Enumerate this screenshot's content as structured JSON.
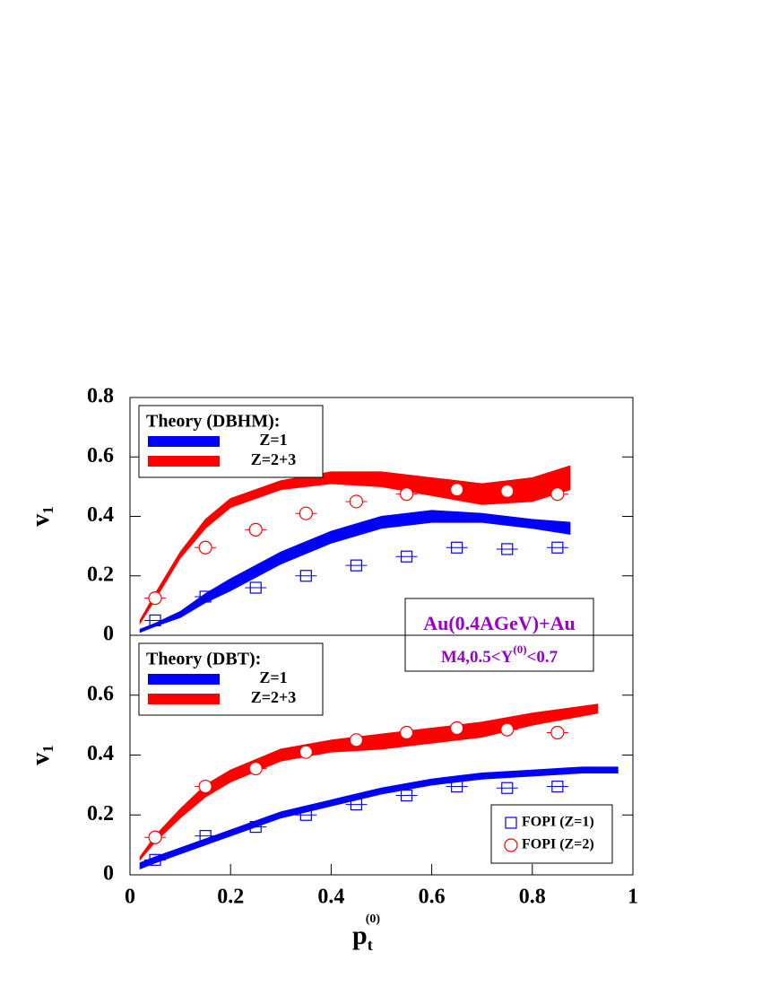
{
  "chart_data": [
    {
      "type": "band",
      "ylabel": {
        "text": "v",
        "sub": "1"
      },
      "xlim": [
        0,
        1
      ],
      "ylim": [
        0,
        0.8
      ],
      "yticks": [
        0,
        0.2,
        0.4,
        0.6,
        0.8
      ],
      "legend": "upper left",
      "legend_title": "Theory (DBHM):",
      "annotation": {
        "line1": "Au(0.4AGeV)+Au",
        "line2": [
          "M4,0.5<Y",
          "(0)",
          "<0.7"
        ],
        "color": "#9900cc"
      },
      "series": [
        {
          "name": "Z=1",
          "color": "#0000ff",
          "x": [
            0.02,
            0.05,
            0.1,
            0.15,
            0.2,
            0.3,
            0.4,
            0.5,
            0.6,
            0.7,
            0.8,
            0.875
          ],
          "low": [
            0.01,
            0.03,
            0.06,
            0.11,
            0.15,
            0.24,
            0.31,
            0.36,
            0.38,
            0.38,
            0.36,
            0.34
          ],
          "high": [
            0.02,
            0.04,
            0.08,
            0.14,
            0.19,
            0.28,
            0.35,
            0.4,
            0.42,
            0.41,
            0.39,
            0.38
          ]
        },
        {
          "name": "Z=2+3",
          "color": "#ff0000",
          "x": [
            0.02,
            0.05,
            0.1,
            0.15,
            0.2,
            0.3,
            0.4,
            0.5,
            0.6,
            0.7,
            0.8,
            0.875
          ],
          "low": [
            0.04,
            0.12,
            0.26,
            0.36,
            0.43,
            0.49,
            0.51,
            0.5,
            0.47,
            0.44,
            0.45,
            0.49
          ],
          "high": [
            0.05,
            0.14,
            0.28,
            0.39,
            0.46,
            0.52,
            0.55,
            0.55,
            0.53,
            0.51,
            0.53,
            0.57
          ]
        }
      ],
      "points": [
        {
          "marker": "square",
          "color": "#0000ff",
          "x": [
            0.05,
            0.15,
            0.25,
            0.35,
            0.45,
            0.55,
            0.65,
            0.75,
            0.85
          ],
          "values": [
            0.05,
            0.13,
            0.16,
            0.2,
            0.235,
            0.265,
            0.295,
            0.29,
            0.295
          ]
        },
        {
          "marker": "circle",
          "color": "#ff0000",
          "x": [
            0.05,
            0.15,
            0.25,
            0.35,
            0.45,
            0.55,
            0.65,
            0.75,
            0.85
          ],
          "values": [
            0.125,
            0.295,
            0.355,
            0.41,
            0.45,
            0.475,
            0.49,
            0.485,
            0.475
          ]
        }
      ]
    },
    {
      "type": "band",
      "ylabel": {
        "text": "v",
        "sub": "1"
      },
      "xlabel": {
        "text": "p",
        "sub": "t",
        "sup": "(0)"
      },
      "xlim": [
        0,
        1
      ],
      "ylim": [
        0,
        0.8
      ],
      "xticks": [
        0,
        0.2,
        0.4,
        0.6,
        0.8,
        1
      ],
      "yticks": [
        0,
        0.2,
        0.4,
        0.6
      ],
      "legend": "upper left",
      "legend_title": "Theory (DBT):",
      "marker_legend": "lower right",
      "series": [
        {
          "name": "Z=1",
          "color": "#0000ff",
          "x": [
            0.02,
            0.05,
            0.1,
            0.2,
            0.3,
            0.4,
            0.5,
            0.6,
            0.7,
            0.8,
            0.9,
            0.97
          ],
          "low": [
            0.02,
            0.04,
            0.07,
            0.13,
            0.19,
            0.23,
            0.27,
            0.3,
            0.32,
            0.33,
            0.34,
            0.34
          ],
          "high": [
            0.04,
            0.06,
            0.09,
            0.15,
            0.21,
            0.25,
            0.29,
            0.32,
            0.34,
            0.35,
            0.36,
            0.36
          ]
        },
        {
          "name": "Z=2+3",
          "color": "#ff0000",
          "x": [
            0.02,
            0.05,
            0.1,
            0.15,
            0.2,
            0.3,
            0.4,
            0.5,
            0.6,
            0.7,
            0.8,
            0.93
          ],
          "low": [
            0.05,
            0.11,
            0.19,
            0.26,
            0.31,
            0.38,
            0.41,
            0.42,
            0.44,
            0.46,
            0.5,
            0.54
          ],
          "high": [
            0.06,
            0.13,
            0.22,
            0.3,
            0.35,
            0.42,
            0.45,
            0.47,
            0.49,
            0.51,
            0.54,
            0.57
          ]
        }
      ],
      "points": [
        {
          "name": "FOPI (Z=1)",
          "marker": "square",
          "color": "#0000ff",
          "x": [
            0.05,
            0.15,
            0.25,
            0.35,
            0.45,
            0.55,
            0.65,
            0.75,
            0.85
          ],
          "values": [
            0.05,
            0.13,
            0.16,
            0.2,
            0.235,
            0.265,
            0.295,
            0.29,
            0.295
          ]
        },
        {
          "name": "FOPI (Z=2)",
          "marker": "circle",
          "color": "#ff0000",
          "x": [
            0.05,
            0.15,
            0.25,
            0.35,
            0.45,
            0.55,
            0.65,
            0.75,
            0.85
          ],
          "values": [
            0.125,
            0.295,
            0.355,
            0.41,
            0.45,
            0.475,
            0.49,
            0.485,
            0.475
          ]
        }
      ]
    }
  ]
}
